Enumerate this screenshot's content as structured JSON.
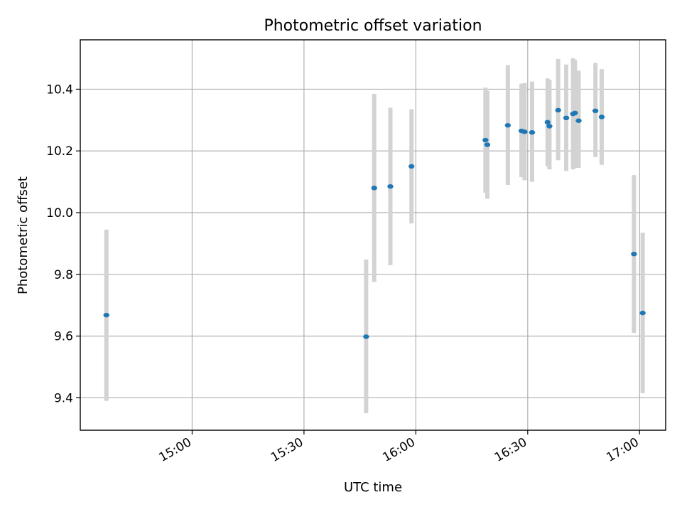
{
  "chart_data": {
    "type": "scatter",
    "title": "Photometric offset variation",
    "xlabel": "UTC time",
    "ylabel": "Photometric offset",
    "x_ticks": [
      "15:00",
      "15:30",
      "16:00",
      "16:30",
      "17:00"
    ],
    "y_ticks": [
      "9.4",
      "9.6",
      "9.8",
      "10.0",
      "10.2",
      "10.4"
    ],
    "xlim": [
      "14:30",
      "17:07"
    ],
    "ylim": [
      9.295,
      10.56
    ],
    "grid": true,
    "series": [
      {
        "points": [
          {
            "t": "14:37:00",
            "y": 9.668,
            "lo": 9.39,
            "hi": 9.945
          },
          {
            "t": "15:46:40",
            "y": 9.598,
            "lo": 9.35,
            "hi": 9.848
          },
          {
            "t": "15:48:50",
            "y": 10.08,
            "lo": 9.775,
            "hi": 10.385
          },
          {
            "t": "15:53:10",
            "y": 10.085,
            "lo": 9.83,
            "hi": 10.34
          },
          {
            "t": "15:58:50",
            "y": 10.15,
            "lo": 9.965,
            "hi": 10.335
          },
          {
            "t": "16:18:40",
            "y": 10.235,
            "lo": 10.065,
            "hi": 10.405
          },
          {
            "t": "16:19:10",
            "y": 10.22,
            "lo": 10.045,
            "hi": 10.395
          },
          {
            "t": "16:24:40",
            "y": 10.283,
            "lo": 10.09,
            "hi": 10.478
          },
          {
            "t": "16:28:20",
            "y": 10.265,
            "lo": 10.115,
            "hi": 10.418
          },
          {
            "t": "16:29:10",
            "y": 10.262,
            "lo": 10.105,
            "hi": 10.42
          },
          {
            "t": "16:31:10",
            "y": 10.26,
            "lo": 10.1,
            "hi": 10.425
          },
          {
            "t": "16:35:20",
            "y": 10.293,
            "lo": 10.15,
            "hi": 10.435
          },
          {
            "t": "16:35:50",
            "y": 10.28,
            "lo": 10.14,
            "hi": 10.43
          },
          {
            "t": "16:38:10",
            "y": 10.332,
            "lo": 10.17,
            "hi": 10.498
          },
          {
            "t": "16:40:20",
            "y": 10.307,
            "lo": 10.135,
            "hi": 10.48
          },
          {
            "t": "16:42:10",
            "y": 10.32,
            "lo": 10.14,
            "hi": 10.5
          },
          {
            "t": "16:42:40",
            "y": 10.323,
            "lo": 10.145,
            "hi": 10.495
          },
          {
            "t": "16:43:40",
            "y": 10.298,
            "lo": 10.145,
            "hi": 10.46
          },
          {
            "t": "16:48:10",
            "y": 10.33,
            "lo": 10.18,
            "hi": 10.485
          },
          {
            "t": "16:49:50",
            "y": 10.31,
            "lo": 10.155,
            "hi": 10.465
          },
          {
            "t": "16:58:30",
            "y": 9.866,
            "lo": 9.61,
            "hi": 10.122
          },
          {
            "t": "17:00:50",
            "y": 9.675,
            "lo": 9.415,
            "hi": 9.935
          }
        ],
        "marker_color": "#1f77b4",
        "errorbar_color": "#d3d3d3"
      }
    ]
  }
}
